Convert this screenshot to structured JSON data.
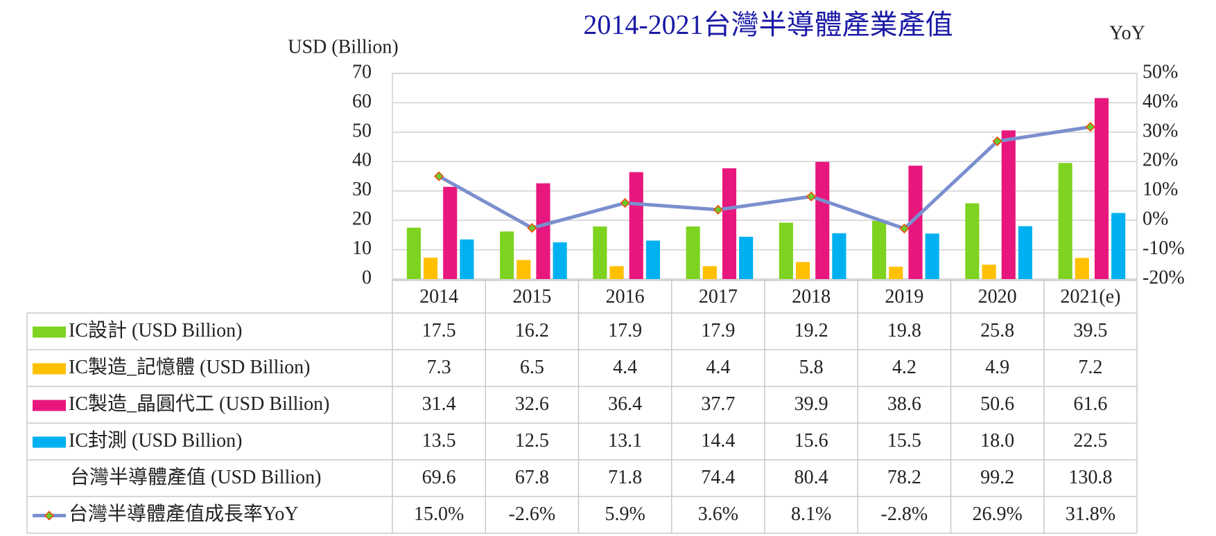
{
  "chart_data": {
    "type": "bar",
    "title": "2014-2021台灣半導體產業產值",
    "ylabel": "USD (Billion)",
    "y2label": "YoY",
    "categories": [
      "2014",
      "2015",
      "2016",
      "2017",
      "2018",
      "2019",
      "2020",
      "2021(e)"
    ],
    "series": [
      {
        "name": "IC設計 (USD Billion)",
        "color": "#7ed321",
        "values": [
          17.5,
          16.2,
          17.9,
          17.9,
          19.2,
          19.8,
          25.8,
          39.5
        ],
        "value_labels": [
          "17.5",
          "16.2",
          "17.9",
          "17.9",
          "19.2",
          "19.8",
          "25.8",
          "39.5"
        ]
      },
      {
        "name": "IC製造_記憶體 (USD Billion)",
        "color": "#ffc000",
        "values": [
          7.3,
          6.5,
          4.4,
          4.4,
          5.8,
          4.2,
          4.9,
          7.2
        ],
        "value_labels": [
          "7.3",
          "6.5",
          "4.4",
          "4.4",
          "5.8",
          "4.2",
          "4.9",
          "7.2"
        ]
      },
      {
        "name": "IC製造_晶圓代工 (USD Billion)",
        "color": "#e8177d",
        "values": [
          31.4,
          32.6,
          36.4,
          37.7,
          39.9,
          38.6,
          50.6,
          61.6
        ],
        "value_labels": [
          "31.4",
          "32.6",
          "36.4",
          "37.7",
          "39.9",
          "38.6",
          "50.6",
          "61.6"
        ]
      },
      {
        "name": "IC封測 (USD Billion)",
        "color": "#00b0f0",
        "values": [
          13.5,
          12.5,
          13.1,
          14.4,
          15.6,
          15.5,
          18.0,
          22.5
        ],
        "value_labels": [
          "13.5",
          "12.5",
          "13.1",
          "14.4",
          "15.6",
          "15.5",
          "18.0",
          "22.5"
        ]
      },
      {
        "name": "台灣半導體產值 (USD Billion)",
        "values": [
          69.6,
          67.8,
          71.8,
          74.4,
          80.4,
          78.2,
          99.2,
          130.8
        ],
        "value_labels": [
          "69.6",
          "67.8",
          "71.8",
          "74.4",
          "80.4",
          "78.2",
          "99.2",
          "130.8"
        ]
      },
      {
        "name": "台灣半導體產值成長率YoY",
        "type": "line",
        "axis": "y2",
        "color": "#7b8fcf",
        "marker_color": "#66cc33",
        "marker_edge": "#ff4000",
        "values": [
          15.0,
          -2.6,
          5.9,
          3.6,
          8.1,
          -2.8,
          26.9,
          31.8
        ],
        "value_labels": [
          "15.0%",
          "-2.6%",
          "5.9%",
          "3.6%",
          "8.1%",
          "-2.8%",
          "26.9%",
          "31.8%"
        ]
      }
    ],
    "ylim": [
      0,
      70
    ],
    "yticks": [
      0,
      10,
      20,
      30,
      40,
      50,
      60,
      70
    ],
    "y2lim": [
      -20,
      50
    ],
    "y2ticks": [
      {
        "value": -20,
        "label": "-20%"
      },
      {
        "value": -10,
        "label": "-10%"
      },
      {
        "value": 0,
        "label": "0%"
      },
      {
        "value": 10,
        "label": "10%"
      },
      {
        "value": 20,
        "label": "20%"
      },
      {
        "value": 30,
        "label": "30%"
      },
      {
        "value": 40,
        "label": "40%"
      },
      {
        "value": 50,
        "label": "50%"
      }
    ],
    "grid": true
  }
}
